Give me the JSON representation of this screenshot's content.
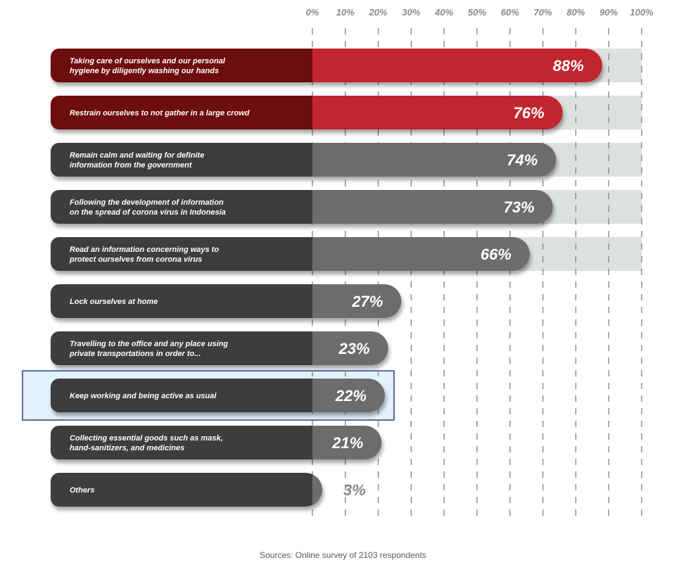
{
  "chart_data": {
    "type": "bar",
    "orientation": "horizontal",
    "title": "",
    "xlabel": "",
    "ylabel": "",
    "xlim": [
      0,
      100
    ],
    "ticks": [
      "0%",
      "10%",
      "20%",
      "30%",
      "40%",
      "50%",
      "60%",
      "70%",
      "80%",
      "90%",
      "100%"
    ],
    "grid": true,
    "legend": "none",
    "value_suffix": "%",
    "categories": [
      [
        "Taking care of ourselves and our personal",
        "hygiene by diligently washing our hands"
      ],
      [
        "Restrain ourselves to not gather in a large crowd"
      ],
      [
        "Remain calm and waiting for definite",
        "information from the government"
      ],
      [
        "Following the development of information",
        "on the spread of corona virus in Indonesia"
      ],
      [
        "Read an information concerning ways to",
        "protect ourselves from corona virus"
      ],
      [
        "Lock ourselves at home"
      ],
      [
        "Travelling to the office and any place using",
        "private transportations in order to..."
      ],
      [
        "Keep working and being active as usual"
      ],
      [
        "Collecting essential goods such as mask,",
        "hand-sanitizers, and medicines"
      ],
      [
        "Others"
      ]
    ],
    "values": [
      88,
      76,
      74,
      73,
      66,
      27,
      23,
      22,
      21,
      3
    ],
    "highlighted_index": 7,
    "colors": {
      "top_bars": "#c1272d",
      "top_bars_dark": "#6e0c10",
      "other_bars": "#6c6c6e",
      "other_bars_dark": "#3d3d3d",
      "track": "#dde0e0",
      "highlight_fill": "#e1f2fa",
      "highlight_border": "#2e3c8f",
      "grid": "#888888"
    }
  },
  "footer": {
    "source": "Sources: Online survey of 2103 respondents"
  }
}
